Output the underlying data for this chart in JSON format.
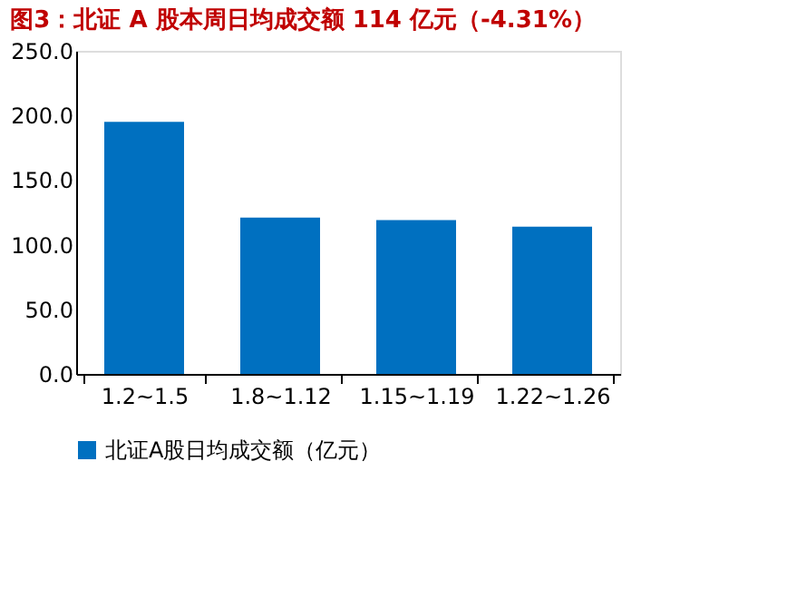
{
  "chart_data": {
    "type": "bar",
    "title": "图3：北证 A 股本周日均成交额 114 亿元（-4.31%）",
    "categories": [
      "1.2~1.5",
      "1.8~1.12",
      "1.15~1.19",
      "1.22~1.26"
    ],
    "series": [
      {
        "name": "北证A股日均成交额（亿元）",
        "color": "#0070c0",
        "values": [
          195,
          121,
          119,
          114
        ]
      }
    ],
    "ylim": [
      0,
      250
    ],
    "yticks": [
      {
        "value": 0,
        "label": "0.0"
      },
      {
        "value": 50,
        "label": "50.0"
      },
      {
        "value": 100,
        "label": "100.0"
      },
      {
        "value": 150,
        "label": "150.0"
      },
      {
        "value": 200,
        "label": "200.0"
      },
      {
        "value": 250,
        "label": "250.0"
      }
    ],
    "grid": false,
    "legend": "bottom"
  }
}
